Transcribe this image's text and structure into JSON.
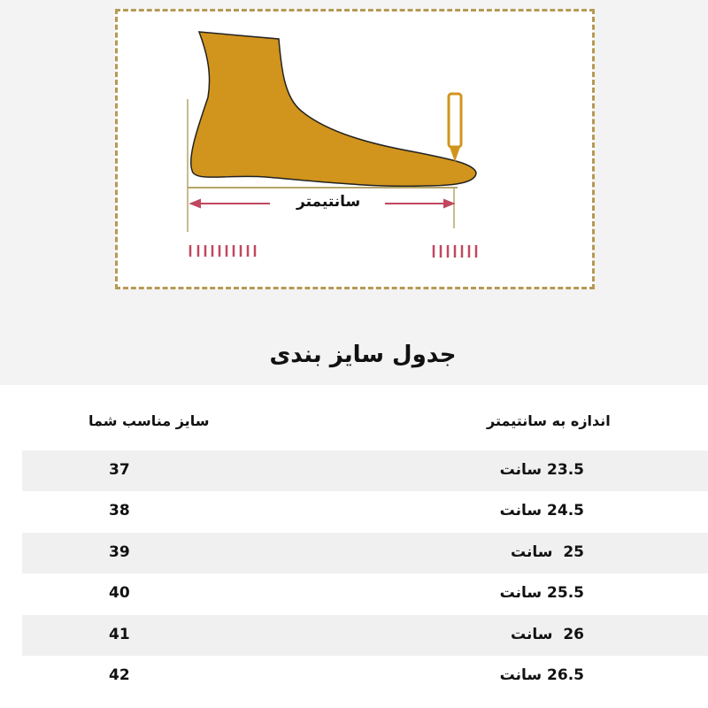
{
  "illustration": {
    "measure_label": "سانتیمتر",
    "foot_color": "#d1941c",
    "frame_color": "#b59a55",
    "arrow_color": "#c0485e"
  },
  "title": "جدول سایز بندی",
  "table": {
    "headers": {
      "size": "سایز مناسب شما",
      "length": "اندازه به سانتیمتر"
    },
    "rows": [
      {
        "size": "37",
        "length": "23.5 سانت"
      },
      {
        "size": "38",
        "length": "24.5 سانت"
      },
      {
        "size": "39",
        "length": "25  سانت"
      },
      {
        "size": "40",
        "length": "25.5 سانت"
      },
      {
        "size": "41",
        "length": "26  سانت"
      },
      {
        "size": "42",
        "length": "26.5 سانت"
      }
    ]
  }
}
